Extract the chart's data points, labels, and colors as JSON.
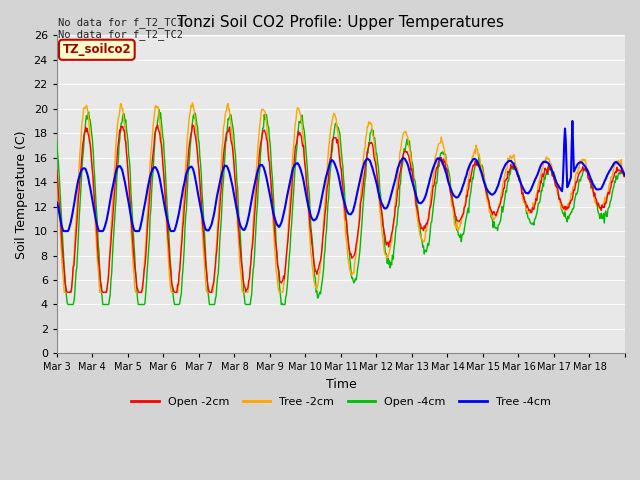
{
  "title": "Tonzi Soil CO2 Profile: Upper Temperatures",
  "xlabel": "Time",
  "ylabel": "Soil Temperature (C)",
  "ylim": [
    0,
    26
  ],
  "yticks": [
    0,
    2,
    4,
    6,
    8,
    10,
    12,
    14,
    16,
    18,
    20,
    22,
    24,
    26
  ],
  "xtick_labels": [
    "Mar 3",
    "Mar 4",
    "Mar 5",
    "Mar 6",
    "Mar 7",
    "Mar 8",
    "Mar 9",
    "Mar 10",
    "Mar 11",
    "Mar 12",
    "Mar 13",
    "Mar 14",
    "Mar 15",
    "Mar 16",
    "Mar 17",
    "Mar 18"
  ],
  "legend_label": "TZ_soilco2",
  "legend_box_color": "#ffffcc",
  "legend_box_edge": "#cc0000",
  "no_data_text1": "No data for f_T2_TC1",
  "no_data_text2": "No data for f_T2_TC2",
  "series": [
    {
      "label": "Open -2cm",
      "color": "#ff0000"
    },
    {
      "label": "Tree -2cm",
      "color": "#ffa500"
    },
    {
      "label": "Open -4cm",
      "color": "#00bb00"
    },
    {
      "label": "Tree -4cm",
      "color": "#0000ff"
    }
  ],
  "bg_color": "#e8e8e8",
  "grid_color": "#ffffff",
  "n_days": 16,
  "figsize": [
    6.4,
    4.8
  ],
  "dpi": 100
}
